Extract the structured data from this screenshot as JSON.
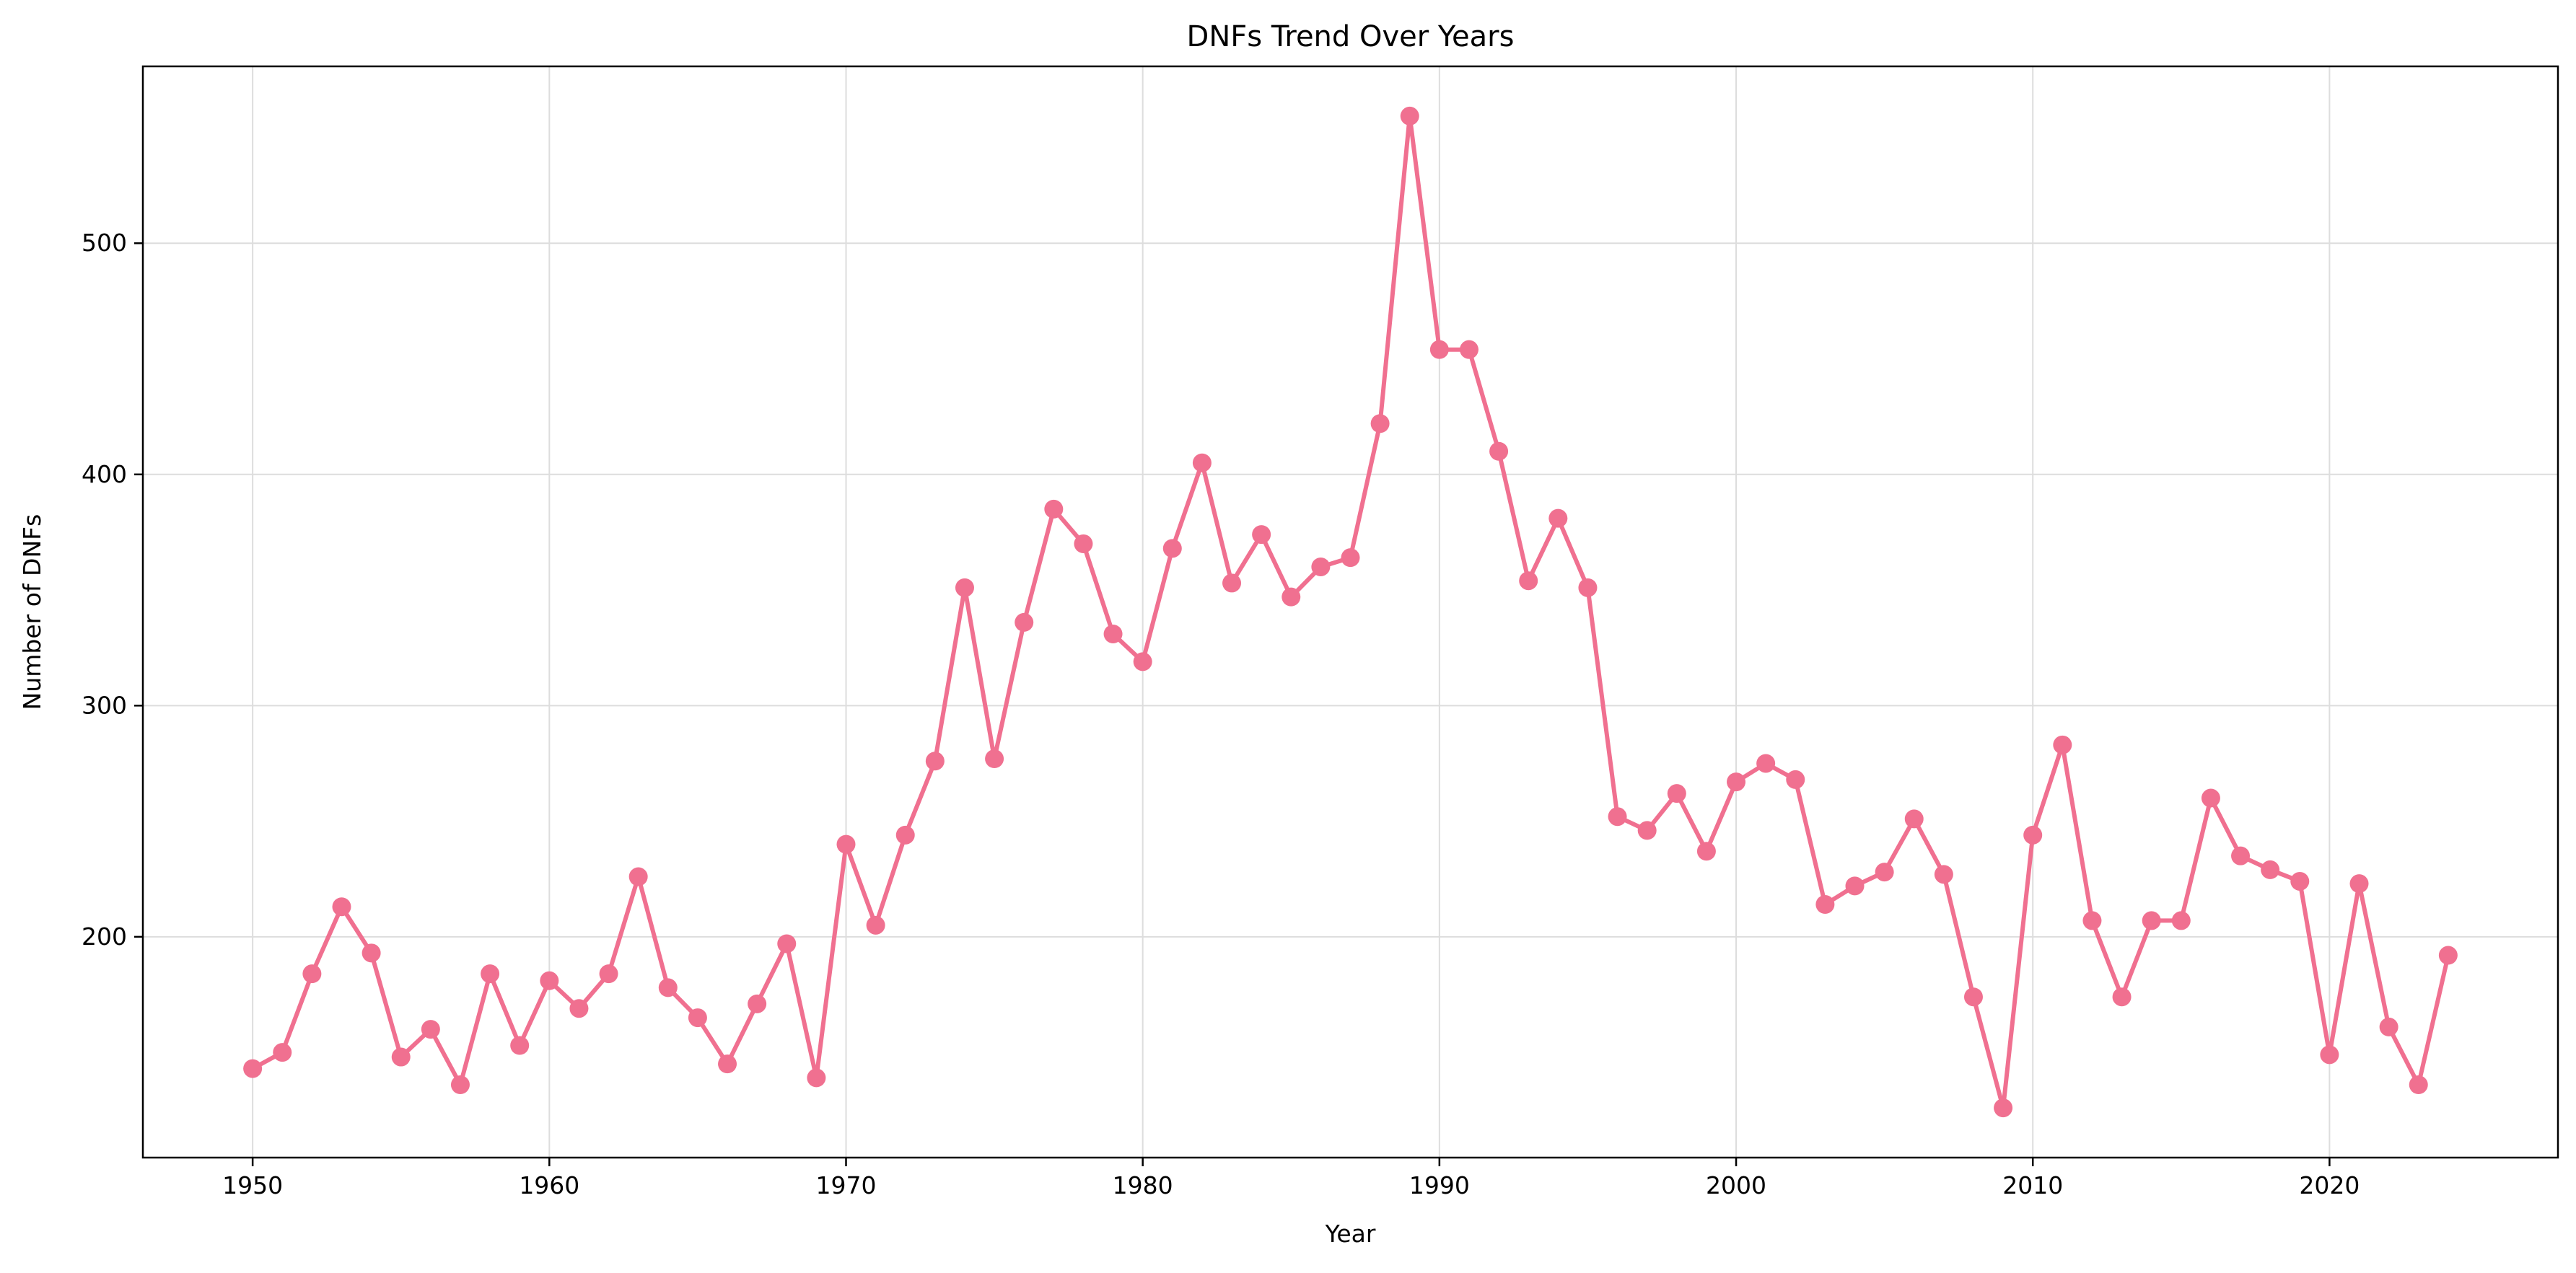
{
  "chart_data": {
    "type": "line",
    "title": "DNFs Trend Over Years",
    "xlabel": "Year",
    "ylabel": "Number of DNFs",
    "xlim": [
      1946.3,
      2027.7
    ],
    "ylim": [
      104.5,
      576.5
    ],
    "xticks": [
      1950,
      1960,
      1970,
      1980,
      1990,
      2000,
      2010,
      2020
    ],
    "yticks": [
      200,
      300,
      400,
      500
    ],
    "grid": true,
    "legend": "none",
    "colors": {
      "line": "#f07090",
      "grid": "#dddddd",
      "frame": "#000000"
    },
    "series": [
      {
        "x": [
          1950,
          1951,
          1952,
          1953,
          1954,
          1955,
          1956,
          1957,
          1958,
          1959,
          1960,
          1961,
          1962,
          1963,
          1964,
          1965,
          1966,
          1967,
          1968,
          1969,
          1970,
          1971,
          1972,
          1973,
          1974,
          1975,
          1976,
          1977,
          1978,
          1979,
          1980,
          1981,
          1982,
          1983,
          1984,
          1985,
          1986,
          1987,
          1988,
          1989,
          1990,
          1991,
          1992,
          1993,
          1994,
          1995,
          1996,
          1997,
          1998,
          1999,
          2000,
          2001,
          2002,
          2003,
          2004,
          2005,
          2006,
          2007,
          2008,
          2009,
          2010,
          2011,
          2012,
          2013,
          2014,
          2015,
          2016,
          2017,
          2018,
          2019,
          2020,
          2021,
          2022,
          2023,
          2024
        ],
        "values": [
          143,
          150,
          184,
          213,
          193,
          148,
          160,
          136,
          184,
          153,
          181,
          169,
          184,
          226,
          178,
          165,
          145,
          171,
          197,
          139,
          240,
          205,
          244,
          276,
          351,
          277,
          336,
          385,
          370,
          331,
          319,
          368,
          405,
          353,
          374,
          347,
          360,
          364,
          422,
          555,
          454,
          454,
          410,
          354,
          381,
          351,
          252,
          246,
          262,
          237,
          267,
          275,
          268,
          214,
          222,
          228,
          251,
          227,
          174,
          126,
          244,
          283,
          207,
          174,
          207,
          207,
          260,
          235,
          229,
          224,
          149,
          223,
          161,
          136,
          192
        ]
      }
    ]
  }
}
